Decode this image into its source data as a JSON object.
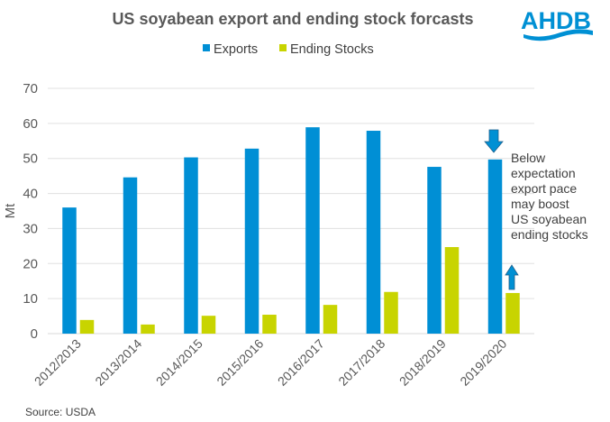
{
  "logo": {
    "text": "AHDB"
  },
  "source": "Source: USDA",
  "colors": {
    "exports": "#008fd5",
    "ending_stocks": "#c8d400",
    "grid": "#e0e0e0",
    "arrow": "#0090d4",
    "arrow_stroke": "#1f5f8b"
  },
  "annotation": {
    "lines": [
      "Below",
      "expectation",
      "export pace",
      "may boost",
      "US soyabean",
      "ending stocks"
    ],
    "arrow_down_icon": "arrow-down",
    "arrow_up_icon": "arrow-up"
  },
  "chart_data": {
    "type": "bar",
    "title": "US soyabean export and ending stock forcasts",
    "xlabel": "",
    "ylabel": "Mt",
    "ylim": [
      0,
      70
    ],
    "yticks": [
      0,
      10,
      20,
      30,
      40,
      50,
      60,
      70
    ],
    "grid": true,
    "legend_position": "top",
    "categories": [
      "2012/2013",
      "2013/2014",
      "2014/2015",
      "2015/2016",
      "2016/2017",
      "2017/2018",
      "2018/2019",
      "2019/2020"
    ],
    "series": [
      {
        "name": "Exports",
        "values": [
          36.0,
          44.6,
          50.3,
          52.8,
          58.9,
          57.9,
          47.6,
          49.7
        ]
      },
      {
        "name": "Ending Stocks",
        "values": [
          3.9,
          2.6,
          5.1,
          5.4,
          8.2,
          11.9,
          24.7,
          11.6
        ]
      }
    ]
  }
}
